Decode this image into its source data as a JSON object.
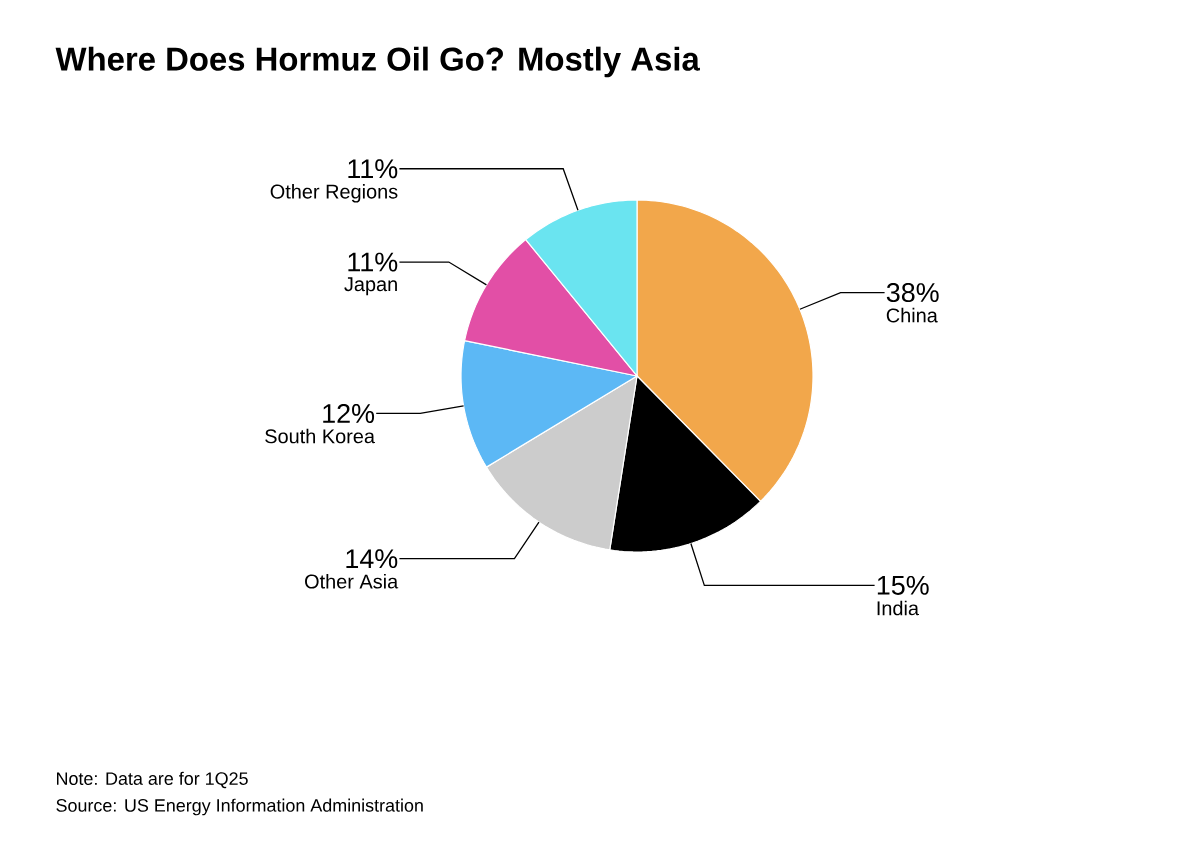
{
  "chart_data": {
    "type": "pie",
    "title": "Where Does Hormuz Oil Go? Mostly Asia",
    "categories": [
      "China",
      "India",
      "Other Asia",
      "South Korea",
      "Japan",
      "Other Regions"
    ],
    "values": [
      38,
      15,
      14,
      12,
      11,
      11
    ],
    "value_labels": [
      "38%",
      "15%",
      "14%",
      "12%",
      "11%",
      "11%"
    ],
    "colors": [
      "#f2a74b",
      "#000000",
      "#cccccc",
      "#5cb8f5",
      "#e24fa6",
      "#6ae4f0"
    ],
    "annotations": [
      "Note: Data are for 1Q25",
      "Source: US Energy Information Administration"
    ]
  }
}
